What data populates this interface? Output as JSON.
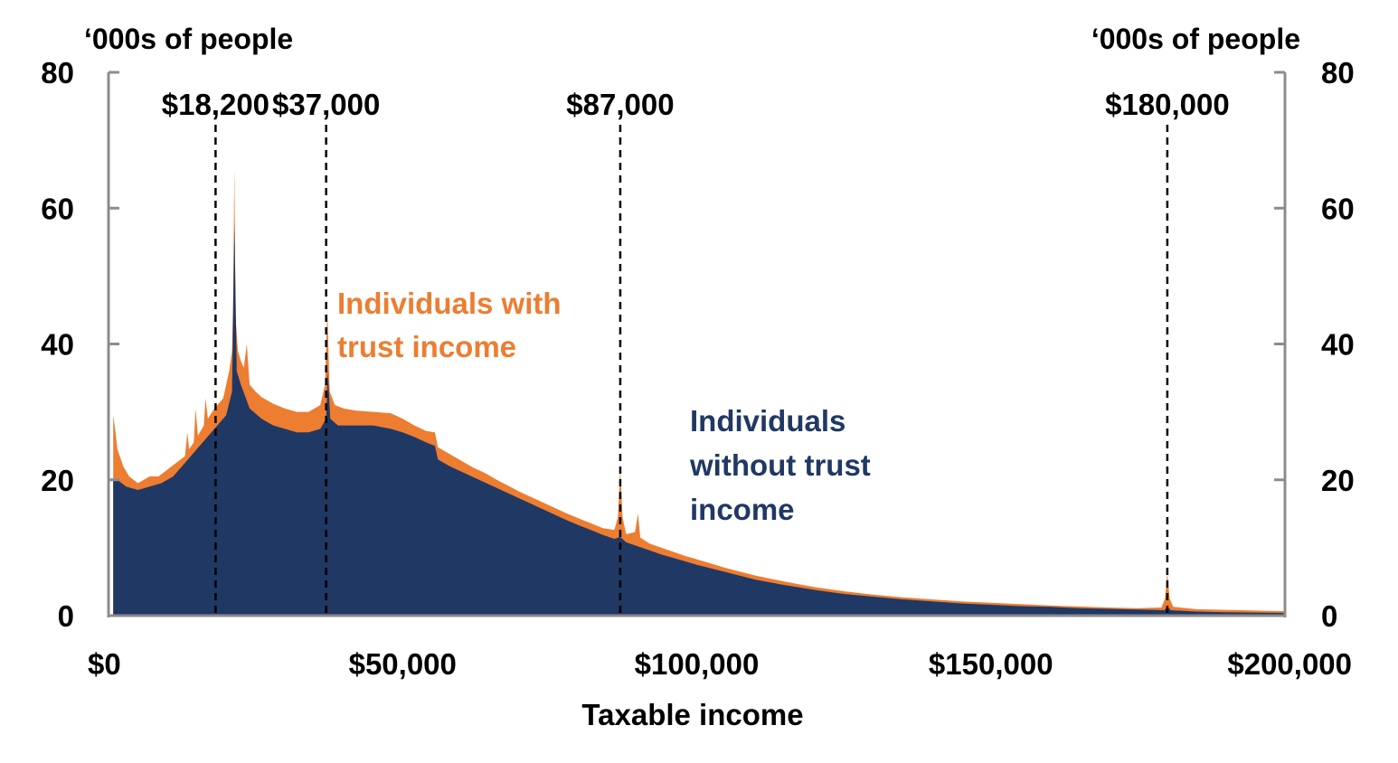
{
  "chart_data": {
    "type": "area",
    "title": "",
    "xlabel": "Taxable income",
    "ylabel_left": "‘000s of people",
    "ylabel_right": "‘000s of people",
    "xlim": [
      0,
      200000
    ],
    "ylim": [
      0,
      80
    ],
    "x_ticks": [
      {
        "value": 0,
        "label": "$0"
      },
      {
        "value": 50000,
        "label": "$50,000"
      },
      {
        "value": 100000,
        "label": "$100,000"
      },
      {
        "value": 150000,
        "label": "$150,000"
      },
      {
        "value": 200000,
        "label": "$200,000"
      }
    ],
    "y_ticks": [
      {
        "value": 0,
        "label": "0"
      },
      {
        "value": 20,
        "label": "20"
      },
      {
        "value": 40,
        "label": "40"
      },
      {
        "value": 60,
        "label": "60"
      },
      {
        "value": 80,
        "label": "80"
      }
    ],
    "thresholds": [
      {
        "value": 18200,
        "label": "$18,200"
      },
      {
        "value": 37000,
        "label": "$37,000"
      },
      {
        "value": 87000,
        "label": "$87,000"
      },
      {
        "value": 180000,
        "label": "$180,000"
      }
    ],
    "stacked": true,
    "series": [
      {
        "name": "Individuals without trust income",
        "label_lines": [
          "Individuals",
          "without trust",
          "income"
        ],
        "color": "#203864",
        "points": [
          [
            800,
            20
          ],
          [
            1500,
            20
          ],
          [
            3000,
            19
          ],
          [
            5000,
            18.5
          ],
          [
            7000,
            19
          ],
          [
            9000,
            19.5
          ],
          [
            11000,
            20.5
          ],
          [
            13000,
            22.5
          ],
          [
            15000,
            24.5
          ],
          [
            16500,
            26
          ],
          [
            18000,
            27.5
          ],
          [
            19000,
            28.5
          ],
          [
            20000,
            29.5
          ],
          [
            21000,
            33
          ],
          [
            21400,
            58
          ],
          [
            21800,
            36
          ],
          [
            22500,
            34
          ],
          [
            24000,
            30.5
          ],
          [
            26000,
            29
          ],
          [
            28000,
            28
          ],
          [
            30000,
            27.5
          ],
          [
            32000,
            27
          ],
          [
            34000,
            27
          ],
          [
            36000,
            27.5
          ],
          [
            37000,
            29
          ],
          [
            37300,
            36
          ],
          [
            37700,
            29
          ],
          [
            39000,
            28
          ],
          [
            42000,
            28
          ],
          [
            45000,
            28
          ],
          [
            48000,
            27.5
          ],
          [
            50000,
            27
          ],
          [
            52000,
            26.3
          ],
          [
            54000,
            25.5
          ],
          [
            55500,
            25
          ],
          [
            56000,
            23
          ],
          [
            58000,
            22
          ],
          [
            60000,
            21.2
          ],
          [
            62000,
            20.4
          ],
          [
            64000,
            19.6
          ],
          [
            66000,
            18.8
          ],
          [
            68000,
            18
          ],
          [
            70000,
            17.2
          ],
          [
            72000,
            16.4
          ],
          [
            74000,
            15.6
          ],
          [
            76000,
            14.8
          ],
          [
            78000,
            14
          ],
          [
            80000,
            13.3
          ],
          [
            82000,
            12.6
          ],
          [
            84000,
            11.9
          ],
          [
            86000,
            11.3
          ],
          [
            87000,
            11.6
          ],
          [
            88000,
            10.8
          ],
          [
            90000,
            10.2
          ],
          [
            92000,
            9.6
          ],
          [
            94000,
            9
          ],
          [
            96000,
            8.5
          ],
          [
            98000,
            8
          ],
          [
            100000,
            7.5
          ],
          [
            105000,
            6.4
          ],
          [
            110000,
            5.3
          ],
          [
            115000,
            4.5
          ],
          [
            120000,
            3.8
          ],
          [
            125000,
            3.2
          ],
          [
            130000,
            2.8
          ],
          [
            135000,
            2.4
          ],
          [
            140000,
            2.1
          ],
          [
            145000,
            1.8
          ],
          [
            150000,
            1.6
          ],
          [
            155000,
            1.4
          ],
          [
            160000,
            1.3
          ],
          [
            165000,
            1.1
          ],
          [
            170000,
            1
          ],
          [
            175000,
            0.9
          ],
          [
            179500,
            0.8
          ],
          [
            180000,
            1.3
          ],
          [
            180600,
            0.8
          ],
          [
            185000,
            0.6
          ],
          [
            190000,
            0.5
          ],
          [
            195000,
            0.45
          ],
          [
            200000,
            0.4
          ]
        ]
      },
      {
        "name": "Individuals with trust income",
        "label_lines": [
          "Individuals with",
          "trust income"
        ],
        "color": "#ED7D31",
        "points": [
          [
            800,
            29.5
          ],
          [
            1200,
            27
          ],
          [
            1500,
            24.5
          ],
          [
            2500,
            22
          ],
          [
            3500,
            20.5
          ],
          [
            5000,
            19.5
          ],
          [
            6000,
            20
          ],
          [
            7000,
            20.5
          ],
          [
            8500,
            20.5
          ],
          [
            10000,
            21.5
          ],
          [
            11500,
            22.5
          ],
          [
            13000,
            23.5
          ],
          [
            13400,
            27
          ],
          [
            13700,
            24.5
          ],
          [
            14500,
            25.5
          ],
          [
            14800,
            30.5
          ],
          [
            15200,
            26.5
          ],
          [
            16200,
            28
          ],
          [
            16500,
            32
          ],
          [
            16900,
            29
          ],
          [
            18000,
            30.5
          ],
          [
            19500,
            32
          ],
          [
            20500,
            36
          ],
          [
            21000,
            39
          ],
          [
            21200,
            47
          ],
          [
            21400,
            66
          ],
          [
            21600,
            44
          ],
          [
            22000,
            39
          ],
          [
            22500,
            37.5
          ],
          [
            23000,
            36.5
          ],
          [
            23500,
            40
          ],
          [
            24000,
            34
          ],
          [
            25000,
            33
          ],
          [
            26000,
            32.2
          ],
          [
            28000,
            31.2
          ],
          [
            30000,
            30.5
          ],
          [
            32000,
            30
          ],
          [
            34000,
            30
          ],
          [
            36000,
            31
          ],
          [
            36800,
            34
          ],
          [
            37200,
            45
          ],
          [
            37600,
            33
          ],
          [
            38500,
            31
          ],
          [
            40000,
            30.5
          ],
          [
            42000,
            30.2
          ],
          [
            45000,
            30
          ],
          [
            48000,
            29.8
          ],
          [
            50000,
            29
          ],
          [
            52000,
            28
          ],
          [
            54000,
            27.2
          ],
          [
            55500,
            27
          ],
          [
            56000,
            24.8
          ],
          [
            58000,
            23.8
          ],
          [
            60000,
            22.8
          ],
          [
            62000,
            21.8
          ],
          [
            64000,
            21
          ],
          [
            66000,
            20
          ],
          [
            68000,
            19.1
          ],
          [
            70000,
            18.2
          ],
          [
            72000,
            17.4
          ],
          [
            74000,
            16.6
          ],
          [
            76000,
            15.8
          ],
          [
            78000,
            15
          ],
          [
            80000,
            14.3
          ],
          [
            82000,
            13.6
          ],
          [
            84000,
            12.9
          ],
          [
            86000,
            12.6
          ],
          [
            86600,
            14.5
          ],
          [
            87000,
            21.5
          ],
          [
            87400,
            14.5
          ],
          [
            88000,
            12
          ],
          [
            89500,
            12.3
          ],
          [
            90000,
            15
          ],
          [
            90400,
            11.5
          ],
          [
            92000,
            10.6
          ],
          [
            94000,
            10
          ],
          [
            96000,
            9.4
          ],
          [
            98000,
            8.8
          ],
          [
            100000,
            8.3
          ],
          [
            105000,
            7
          ],
          [
            110000,
            5.9
          ],
          [
            115000,
            5
          ],
          [
            120000,
            4.2
          ],
          [
            125000,
            3.6
          ],
          [
            130000,
            3.1
          ],
          [
            135000,
            2.7
          ],
          [
            140000,
            2.4
          ],
          [
            145000,
            2.1
          ],
          [
            150000,
            1.9
          ],
          [
            155000,
            1.7
          ],
          [
            160000,
            1.5
          ],
          [
            165000,
            1.35
          ],
          [
            170000,
            1.2
          ],
          [
            175000,
            1.1
          ],
          [
            179000,
            1.2
          ],
          [
            179600,
            2.5
          ],
          [
            180000,
            6.2
          ],
          [
            180400,
            2.5
          ],
          [
            181000,
            1.3
          ],
          [
            185000,
            0.95
          ],
          [
            190000,
            0.85
          ],
          [
            195000,
            0.75
          ],
          [
            200000,
            0.65
          ]
        ]
      }
    ]
  }
}
